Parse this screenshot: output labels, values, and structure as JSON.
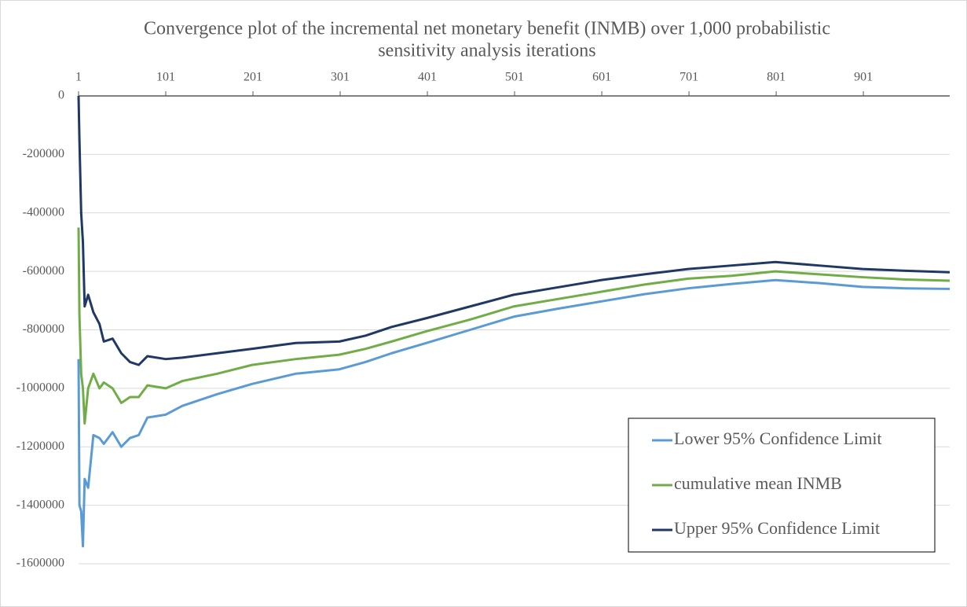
{
  "chart_data": {
    "type": "line",
    "title": [
      "Convergence plot of the incremental net monetary benefit (INMB) over 1,000 probabilistic",
      "sensitivity analysis iterations"
    ],
    "x": [
      1,
      2,
      4,
      6,
      8,
      12,
      18,
      25,
      30,
      40,
      50,
      60,
      70,
      80,
      101,
      120,
      160,
      200,
      250,
      300,
      330,
      360,
      400,
      450,
      500,
      550,
      600,
      650,
      700,
      750,
      800,
      850,
      900,
      950,
      1000
    ],
    "xlim": [
      1,
      1000
    ],
    "xticks": [
      1,
      101,
      201,
      301,
      401,
      501,
      601,
      701,
      801,
      901
    ],
    "ylim": [
      -1600000,
      0
    ],
    "yticks": [
      0,
      -200000,
      -400000,
      -600000,
      -800000,
      -1000000,
      -1200000,
      -1400000,
      -1600000
    ],
    "grid": true,
    "legend": "lower right",
    "series": [
      {
        "name": "Lower 95% Confidence Limit",
        "color": "#5b9bd5",
        "values": [
          -900000,
          -1400000,
          -1420000,
          -1540000,
          -1310000,
          -1340000,
          -1160000,
          -1170000,
          -1190000,
          -1150000,
          -1200000,
          -1170000,
          -1160000,
          -1100000,
          -1090000,
          -1060000,
          -1020000,
          -985000,
          -950000,
          -935000,
          -910000,
          -880000,
          -845000,
          -800000,
          -755000,
          -728000,
          -703000,
          -678000,
          -658000,
          -643000,
          -630000,
          -640000,
          -653000,
          -658000,
          -660000
        ]
      },
      {
        "name": "cumulative mean INMB",
        "color": "#70ad47",
        "values": [
          -450000,
          -750000,
          -950000,
          -1000000,
          -1120000,
          -1000000,
          -950000,
          -1000000,
          -980000,
          -1000000,
          -1050000,
          -1030000,
          -1030000,
          -990000,
          -1000000,
          -975000,
          -950000,
          -920000,
          -900000,
          -885000,
          -865000,
          -840000,
          -805000,
          -765000,
          -720000,
          -695000,
          -670000,
          -645000,
          -625000,
          -615000,
          -600000,
          -610000,
          -620000,
          -628000,
          -632000
        ]
      },
      {
        "name": "Upper 95% Confidence Limit",
        "color": "#203864",
        "values": [
          0,
          -150000,
          -400000,
          -500000,
          -720000,
          -680000,
          -740000,
          -780000,
          -840000,
          -830000,
          -880000,
          -910000,
          -920000,
          -890000,
          -900000,
          -895000,
          -880000,
          -865000,
          -845000,
          -840000,
          -820000,
          -790000,
          -760000,
          -720000,
          -680000,
          -655000,
          -630000,
          -610000,
          -592000,
          -580000,
          -568000,
          -580000,
          -592000,
          -598000,
          -603000
        ]
      }
    ]
  }
}
